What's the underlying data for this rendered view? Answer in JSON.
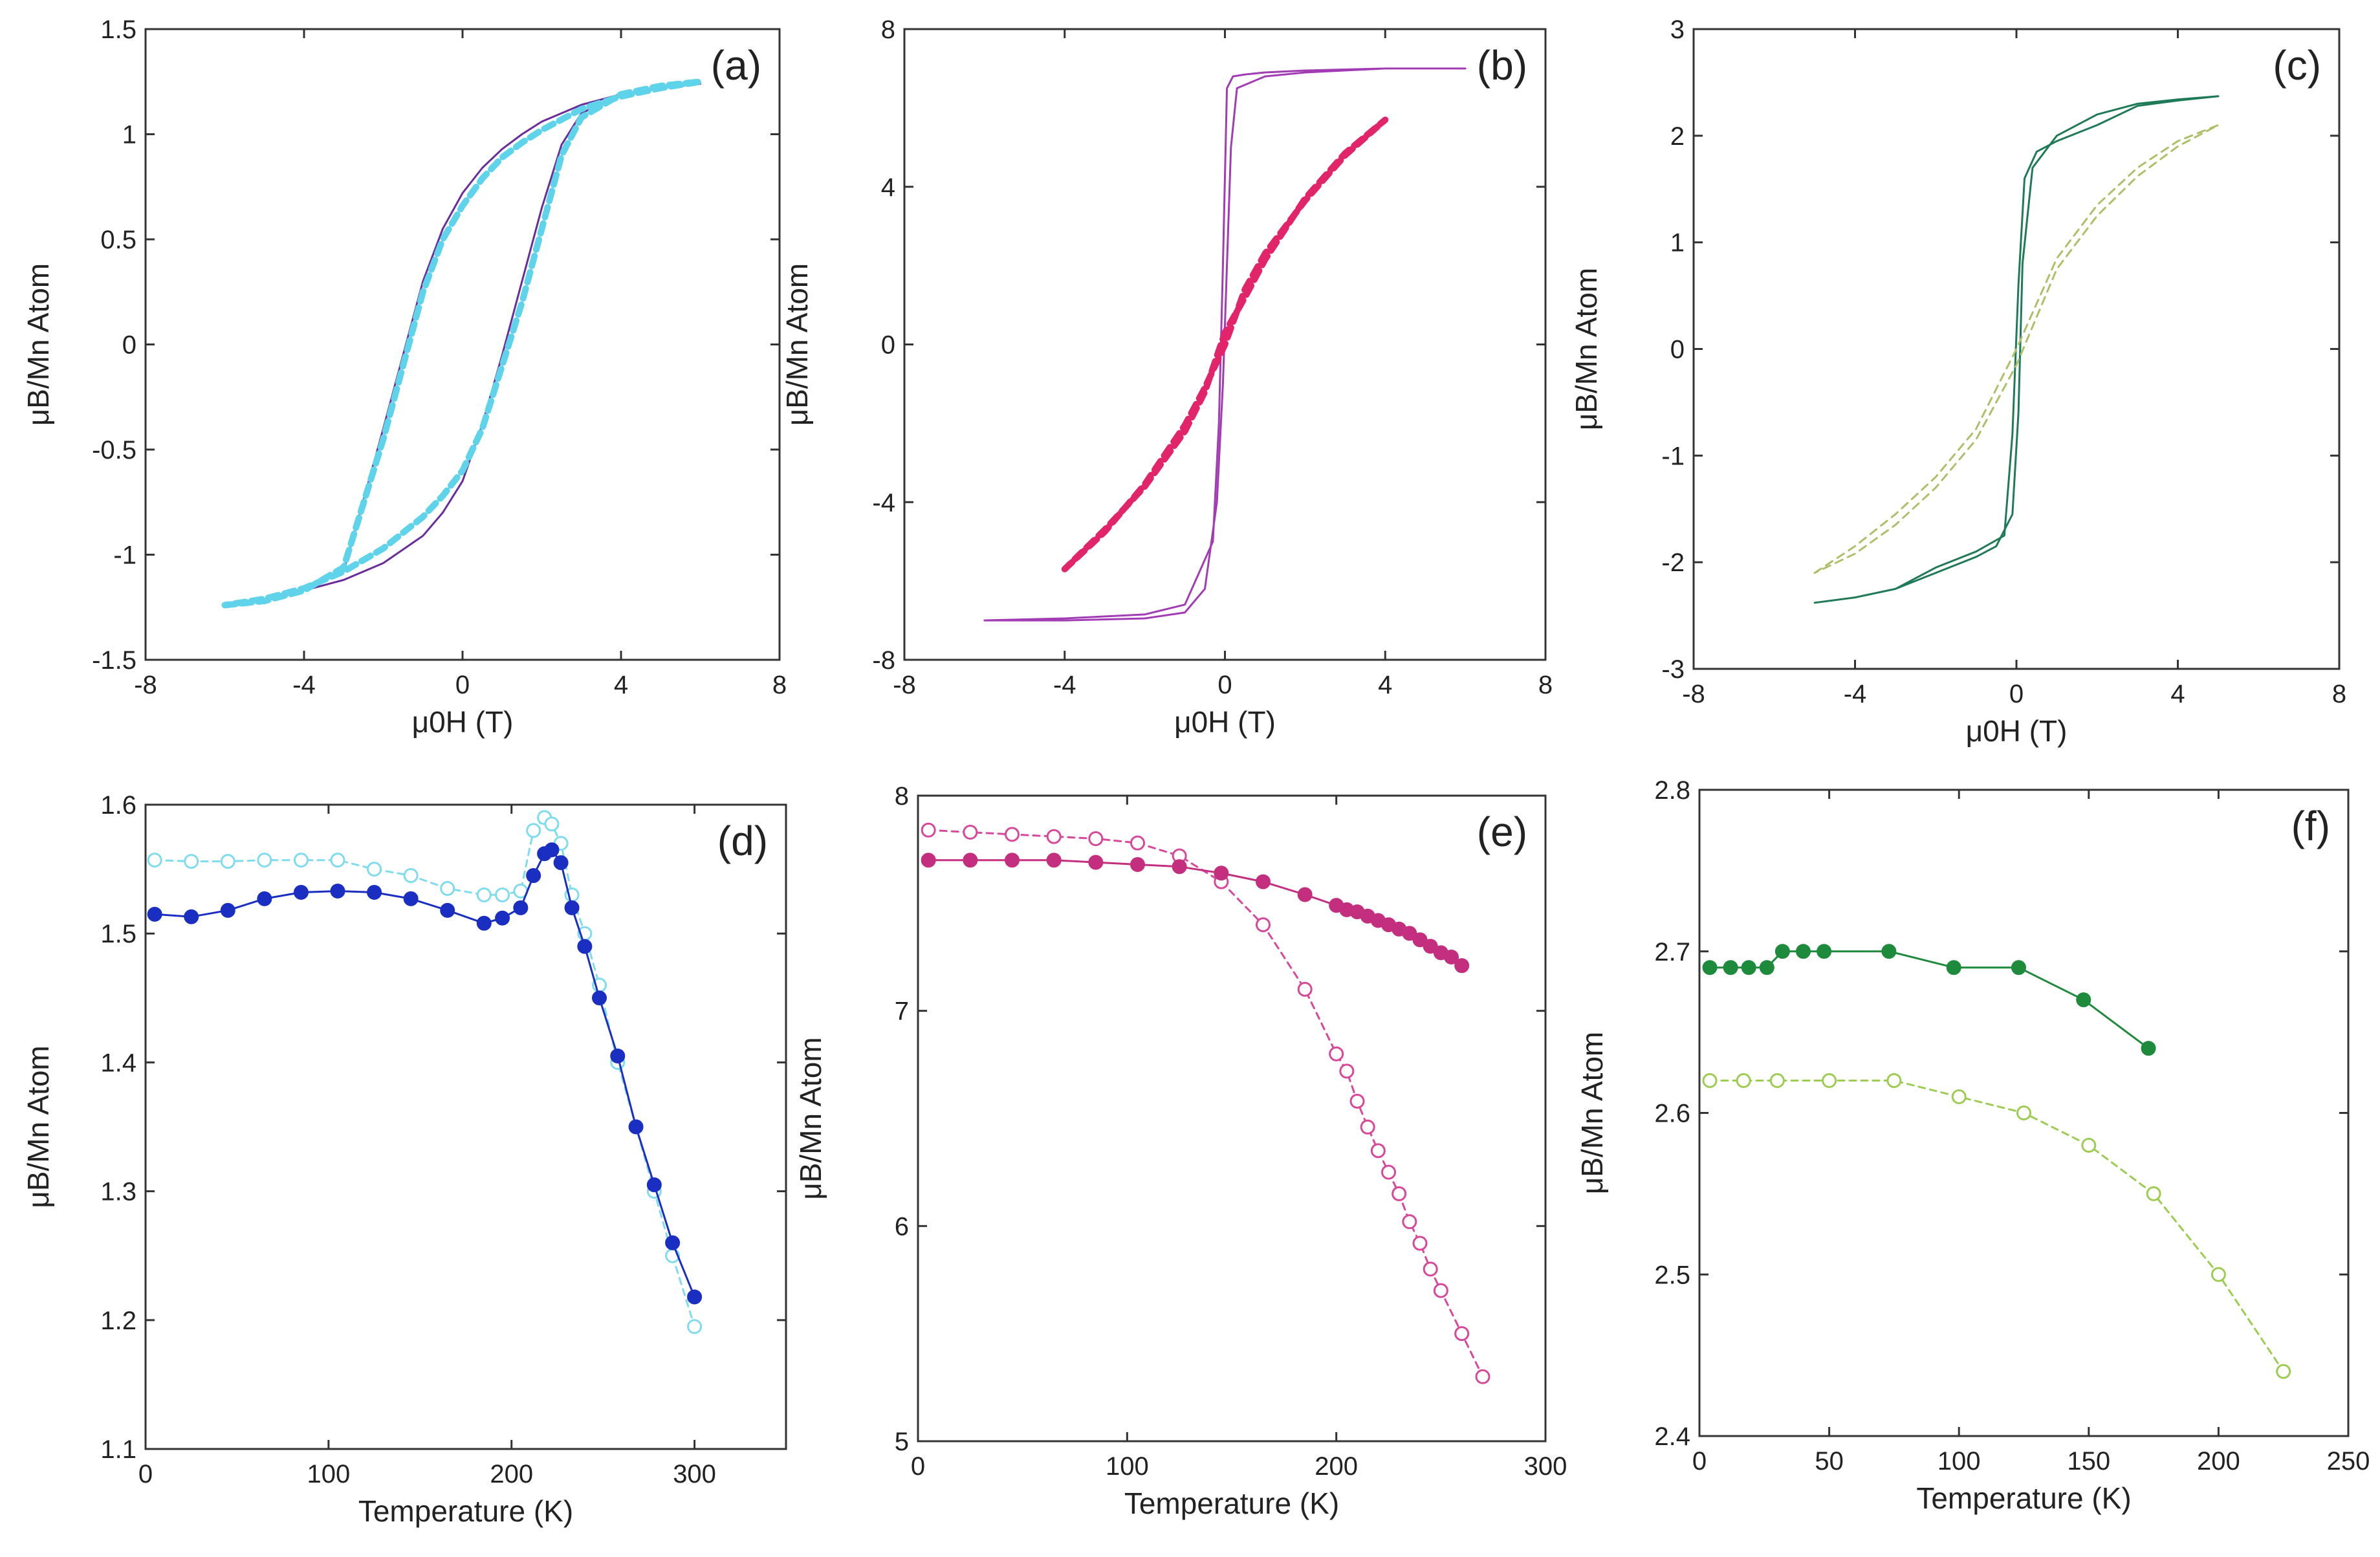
{
  "figure": {
    "description_free": true
  },
  "chart_data": [
    {
      "id": "a",
      "type": "line",
      "panel_label": "(a)",
      "xlabel": "μ0H (T)",
      "ylabel": "μB/Mn Atom",
      "xlim": [
        -8,
        8
      ],
      "ylim": [
        -1.5,
        1.5
      ],
      "xticks": [
        -8,
        -4,
        0,
        4,
        8
      ],
      "xtick_labels": [
        "-8",
        "-4",
        "0",
        "4",
        "8"
      ],
      "yticks": [
        -1.5,
        -1,
        -0.5,
        0,
        0.5,
        1,
        1.5
      ],
      "ytick_labels": [
        "-1.5",
        "-1",
        "-0.5",
        "0",
        "0.5",
        "1",
        "1.5"
      ],
      "series": [
        {
          "name": "purple solid loop",
          "color": "#6a2c9a",
          "dash": "",
          "width": 3,
          "marker": "none",
          "x": [
            -6,
            -5,
            -4,
            -3,
            -2,
            -1.5,
            -1,
            -0.5,
            0,
            0.5,
            1,
            1.5,
            2,
            3,
            4,
            5,
            6,
            5,
            4,
            3,
            2.5,
            2,
            1.5,
            1,
            0.5,
            0,
            -0.5,
            -1,
            -2,
            -3,
            -4,
            -5,
            -6
          ],
          "y": [
            -1.24,
            -1.21,
            -1.16,
            -1.08,
            -0.4,
            -0.05,
            0.3,
            0.55,
            0.72,
            0.84,
            0.93,
            1.0,
            1.06,
            1.14,
            1.19,
            1.22,
            1.24,
            1.22,
            1.19,
            1.1,
            0.95,
            0.65,
            0.3,
            -0.05,
            -0.38,
            -0.65,
            -0.8,
            -0.91,
            -1.04,
            -1.12,
            -1.17,
            -1.21,
            -1.24
          ]
        },
        {
          "name": "cyan dashed loop",
          "color": "#5fd3ea",
          "dash": "16,10",
          "width": 10,
          "marker": "none",
          "x": [
            -6,
            -5,
            -4,
            -3,
            -2,
            -1.5,
            -1,
            -0.5,
            0,
            0.5,
            1,
            1.5,
            2,
            3,
            4,
            5,
            6,
            5,
            4,
            3,
            2.5,
            2,
            1.5,
            1,
            0.5,
            0,
            -0.5,
            -1,
            -2,
            -3,
            -4,
            -5,
            -6
          ],
          "y": [
            -1.24,
            -1.22,
            -1.17,
            -1.06,
            -0.45,
            -0.1,
            0.25,
            0.5,
            0.66,
            0.79,
            0.89,
            0.96,
            1.02,
            1.12,
            1.18,
            1.22,
            1.25,
            1.23,
            1.19,
            1.08,
            0.9,
            0.55,
            0.2,
            -0.1,
            -0.4,
            -0.6,
            -0.72,
            -0.82,
            -0.97,
            -1.08,
            -1.16,
            -1.21,
            -1.24
          ]
        }
      ]
    },
    {
      "id": "b",
      "type": "line",
      "panel_label": "(b)",
      "xlabel": "μ0H (T)",
      "ylabel": "μB/Mn Atom",
      "xlim": [
        -8,
        8
      ],
      "ylim": [
        -8,
        8
      ],
      "xticks": [
        -8,
        -4,
        0,
        4,
        8
      ],
      "xtick_labels": [
        "-8",
        "-4",
        "0",
        "4",
        "8"
      ],
      "yticks": [
        -8,
        -4,
        0,
        4,
        8
      ],
      "ytick_labels": [
        "-8",
        "-4",
        "0",
        "4",
        "8"
      ],
      "series": [
        {
          "name": "purple solid loop",
          "color": "#a23cb4",
          "dash": "",
          "width": 3,
          "marker": "none",
          "x": [
            -6,
            -4,
            -2,
            -1,
            -0.5,
            -0.2,
            -0.05,
            0.05,
            0.15,
            0.3,
            1,
            2,
            4,
            6,
            4,
            2,
            1,
            0.5,
            0.2,
            0.05,
            -0.05,
            -0.15,
            -0.3,
            -1,
            -2,
            -4,
            -6
          ],
          "y": [
            -7.0,
            -7.0,
            -6.95,
            -6.8,
            -6.2,
            -4.0,
            -1.0,
            2.0,
            5.0,
            6.5,
            6.8,
            6.9,
            7.0,
            7.0,
            7.0,
            6.95,
            6.9,
            6.85,
            6.8,
            6.5,
            2.0,
            -2.0,
            -5.0,
            -6.6,
            -6.85,
            -6.95,
            -7.0
          ]
        },
        {
          "name": "magenta dashed loop",
          "color": "#e2246b",
          "dash": "16,10",
          "width": 10,
          "marker": "none",
          "x": [
            -4,
            -3,
            -2,
            -1,
            -0.5,
            0,
            0.5,
            1,
            2,
            3,
            4,
            3,
            2,
            1,
            0.5,
            0,
            -0.5,
            -1,
            -2,
            -3,
            -4
          ],
          "y": [
            -5.7,
            -4.75,
            -3.55,
            -2.05,
            -1.1,
            0.0,
            1.4,
            2.3,
            3.65,
            4.8,
            5.7,
            4.85,
            3.7,
            2.15,
            1.2,
            0.3,
            -1.2,
            -2.2,
            -3.6,
            -4.7,
            -5.7
          ]
        }
      ]
    },
    {
      "id": "c",
      "type": "line",
      "panel_label": "(c)",
      "xlabel": "μ0H (T)",
      "ylabel": "μB/Mn Atom",
      "xlim": [
        -8,
        8
      ],
      "ylim": [
        -3,
        3
      ],
      "xticks": [
        -8,
        -4,
        0,
        4,
        8
      ],
      "xtick_labels": [
        "-8",
        "-4",
        "0",
        "4",
        "8"
      ],
      "yticks": [
        -3,
        -2,
        -1,
        0,
        1,
        2,
        3
      ],
      "ytick_labels": [
        "-3",
        "-2",
        "-1",
        "0",
        "1",
        "2",
        "3"
      ],
      "series": [
        {
          "name": "dark green solid loop",
          "color": "#1f7a58",
          "dash": "",
          "width": 3,
          "marker": "none",
          "x": [
            -5,
            -4,
            -3,
            -2,
            -1,
            -0.3,
            -0.1,
            0.05,
            0.2,
            0.5,
            1,
            2,
            3,
            4,
            5,
            4,
            3,
            2,
            1,
            0.4,
            0.15,
            0.05,
            -0.1,
            -0.5,
            -1,
            -2,
            -3,
            -4,
            -5
          ],
          "y": [
            -2.38,
            -2.33,
            -2.25,
            -2.05,
            -1.9,
            -1.75,
            -0.8,
            0.6,
            1.6,
            1.85,
            1.95,
            2.1,
            2.28,
            2.33,
            2.37,
            2.34,
            2.3,
            2.2,
            2.0,
            1.7,
            0.8,
            -0.6,
            -1.55,
            -1.85,
            -1.95,
            -2.1,
            -2.25,
            -2.33,
            -2.38
          ]
        },
        {
          "name": "light green dashed loop",
          "color": "#aebf6a",
          "dash": "12,9",
          "width": 3,
          "marker": "none",
          "x": [
            -5,
            -4,
            -3,
            -2,
            -1,
            0,
            1,
            2,
            3,
            4,
            5,
            4,
            3,
            2,
            1,
            0,
            -1,
            -2,
            -3,
            -4,
            -5
          ],
          "y": [
            -2.1,
            -1.85,
            -1.55,
            -1.2,
            -0.75,
            0.0,
            0.85,
            1.35,
            1.7,
            1.95,
            2.1,
            1.9,
            1.62,
            1.25,
            0.75,
            -0.15,
            -0.85,
            -1.3,
            -1.65,
            -1.92,
            -2.1
          ]
        }
      ]
    },
    {
      "id": "d",
      "type": "line",
      "panel_label": "(d)",
      "xlabel": "Temperature (K)",
      "ylabel": "μB/Mn Atom",
      "xlim": [
        0,
        350
      ],
      "ylim": [
        1.1,
        1.6
      ],
      "xticks": [
        0,
        100,
        200,
        300
      ],
      "xtick_labels": [
        "0",
        "100",
        "200",
        "300"
      ],
      "yticks": [
        1.1,
        1.2,
        1.3,
        1.4,
        1.5,
        1.6
      ],
      "ytick_labels": [
        "1.1",
        "1.2",
        "1.3",
        "1.4",
        "1.5",
        "1.6"
      ],
      "series": [
        {
          "name": "open cyan circles, dashed",
          "color": "#7fdcee",
          "dash": "10,8",
          "width": 3,
          "marker": "open",
          "x": [
            5,
            25,
            45,
            65,
            85,
            105,
            125,
            145,
            165,
            185,
            195,
            205,
            212,
            218,
            222,
            227,
            233,
            240,
            248,
            258,
            268,
            278,
            288,
            300
          ],
          "y": [
            1.557,
            1.556,
            1.556,
            1.557,
            1.557,
            1.557,
            1.55,
            1.545,
            1.535,
            1.53,
            1.53,
            1.533,
            1.58,
            1.59,
            1.585,
            1.57,
            1.53,
            1.5,
            1.46,
            1.4,
            1.35,
            1.3,
            1.25,
            1.195
          ]
        },
        {
          "name": "filled blue circles, solid",
          "color": "#1a2fc2",
          "dash": "",
          "width": 3,
          "marker": "filled",
          "x": [
            5,
            25,
            45,
            65,
            85,
            105,
            125,
            145,
            165,
            185,
            195,
            205,
            212,
            218,
            222,
            227,
            233,
            240,
            248,
            258,
            268,
            278,
            288,
            300
          ],
          "y": [
            1.515,
            1.513,
            1.518,
            1.527,
            1.532,
            1.533,
            1.532,
            1.527,
            1.518,
            1.508,
            1.512,
            1.52,
            1.545,
            1.562,
            1.565,
            1.555,
            1.52,
            1.49,
            1.45,
            1.405,
            1.35,
            1.305,
            1.26,
            1.218
          ]
        }
      ]
    },
    {
      "id": "e",
      "type": "line",
      "panel_label": "(e)",
      "xlabel": "Temperature (K)",
      "ylabel": "μB/Mn Atom",
      "xlim": [
        0,
        300
      ],
      "ylim": [
        5,
        8
      ],
      "xticks": [
        0,
        100,
        200,
        300
      ],
      "xtick_labels": [
        "0",
        "100",
        "200",
        "300"
      ],
      "yticks": [
        5,
        6,
        7,
        8
      ],
      "ytick_labels": [
        "5",
        "6",
        "7",
        "8"
      ],
      "series": [
        {
          "name": "open pink circles, dashed",
          "color": "#d8489a",
          "dash": "10,8",
          "width": 3,
          "marker": "open",
          "x": [
            5,
            25,
            45,
            65,
            85,
            105,
            125,
            145,
            165,
            185,
            200,
            205,
            210,
            215,
            220,
            225,
            230,
            235,
            240,
            245,
            250,
            260,
            270
          ],
          "y": [
            7.84,
            7.83,
            7.82,
            7.81,
            7.8,
            7.78,
            7.72,
            7.6,
            7.4,
            7.1,
            6.8,
            6.72,
            6.58,
            6.46,
            6.35,
            6.25,
            6.15,
            6.02,
            5.92,
            5.8,
            5.7,
            5.5,
            5.3
          ]
        },
        {
          "name": "filled pink circles, solid",
          "color": "#c42e7e",
          "dash": "",
          "width": 3,
          "marker": "filled",
          "x": [
            5,
            25,
            45,
            65,
            85,
            105,
            125,
            145,
            165,
            185,
            200,
            205,
            210,
            215,
            220,
            225,
            230,
            235,
            240,
            245,
            250,
            255,
            260
          ],
          "y": [
            7.7,
            7.7,
            7.7,
            7.7,
            7.69,
            7.68,
            7.67,
            7.64,
            7.6,
            7.54,
            7.49,
            7.47,
            7.46,
            7.44,
            7.42,
            7.4,
            7.38,
            7.36,
            7.33,
            7.3,
            7.27,
            7.25,
            7.21
          ]
        }
      ]
    },
    {
      "id": "f",
      "type": "line",
      "panel_label": "(f)",
      "xlabel": "Temperature (K)",
      "ylabel": "μB/Mn Atom",
      "xlim": [
        0,
        250
      ],
      "ylim": [
        2.4,
        2.8
      ],
      "xticks": [
        0,
        50,
        100,
        150,
        200,
        250
      ],
      "xtick_labels": [
        "0",
        "50",
        "100",
        "150",
        "200",
        "250"
      ],
      "yticks": [
        2.4,
        2.5,
        2.6,
        2.7,
        2.8
      ],
      "ytick_labels": [
        "2.4",
        "2.5",
        "2.6",
        "2.7",
        "2.8"
      ],
      "series": [
        {
          "name": "filled green circles, solid",
          "color": "#1e8a3c",
          "dash": "",
          "width": 3,
          "marker": "filled",
          "x": [
            4,
            12,
            19,
            26,
            32,
            40,
            48,
            73,
            98,
            123,
            148,
            173
          ],
          "y": [
            2.69,
            2.69,
            2.69,
            2.69,
            2.7,
            2.7,
            2.7,
            2.7,
            2.69,
            2.69,
            2.67,
            2.64
          ]
        },
        {
          "name": "open light green circles, dashed",
          "color": "#9ccc52",
          "dash": "10,8",
          "width": 3,
          "marker": "open",
          "x": [
            4,
            17,
            30,
            50,
            75,
            100,
            125,
            150,
            175,
            200,
            225
          ],
          "y": [
            2.62,
            2.62,
            2.62,
            2.62,
            2.62,
            2.61,
            2.6,
            2.58,
            2.55,
            2.5,
            2.44
          ]
        }
      ]
    }
  ]
}
